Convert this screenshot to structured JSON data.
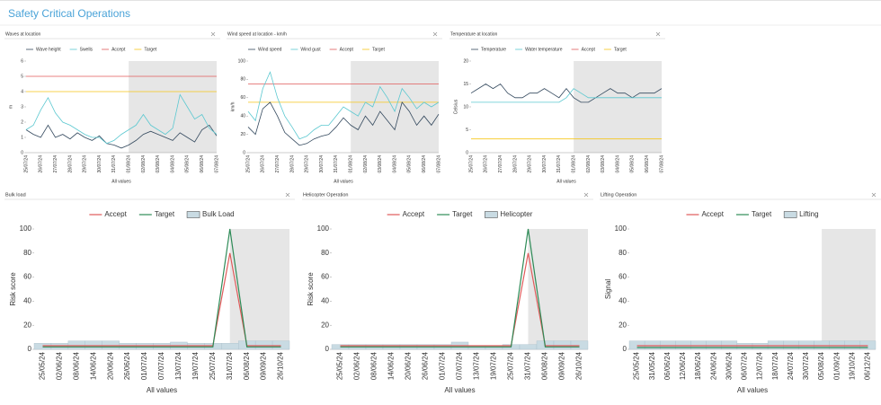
{
  "page_title": "Safety Critical Operations",
  "chart_data": [
    {
      "type": "line",
      "title": "Waves at location",
      "ylabel": "m",
      "xlabel": "All values",
      "categories": [
        "25/07/24",
        null,
        "26/07/24",
        null,
        "27/07/24",
        null,
        "28/07/24",
        null,
        "29/07/24",
        null,
        "30/07/24",
        null,
        "31/07/24",
        null,
        "01/08/24",
        null,
        "02/08/24",
        null,
        "03/08/24",
        null,
        "04/08/24",
        null,
        "05/08/24",
        null,
        "06/08/24",
        null,
        "07/08/24"
      ],
      "shade_from": "01/08/24",
      "ylim": [
        0,
        6
      ],
      "yticks": [
        0,
        1,
        2,
        3,
        4,
        5,
        6
      ],
      "series": [
        {
          "name": "Wave height",
          "color": "#34495e",
          "values": [
            1.5,
            1.2,
            1.0,
            1.8,
            1.0,
            1.2,
            0.9,
            1.3,
            1.0,
            0.8,
            1.1,
            0.6,
            0.5,
            0.3,
            0.5,
            0.8,
            1.2,
            1.4,
            1.2,
            1.0,
            0.8,
            1.3,
            1.0,
            0.7,
            1.5,
            1.8,
            1.1
          ]
        },
        {
          "name": "Swells",
          "color": "#5bc8d0",
          "values": [
            1.5,
            1.8,
            2.8,
            3.6,
            2.6,
            2.0,
            1.8,
            1.5,
            1.2,
            1.0,
            1.0,
            0.6,
            0.8,
            1.2,
            1.5,
            1.8,
            2.5,
            1.8,
            1.5,
            1.2,
            1.6,
            3.8,
            3.0,
            2.2,
            2.5,
            1.6,
            1.2
          ]
        }
      ],
      "thresholds": [
        {
          "name": "Accept",
          "color": "#e05a5a",
          "value": 5
        },
        {
          "name": "Target",
          "color": "#f5c518",
          "value": 4
        }
      ]
    },
    {
      "type": "line",
      "title": "Wind speed at location - km/h",
      "ylabel": "km/h",
      "xlabel": "All values",
      "categories": [
        "25/07/24",
        null,
        "26/07/24",
        null,
        "27/07/24",
        null,
        "28/07/24",
        null,
        "29/07/24",
        null,
        "30/07/24",
        null,
        "31/07/24",
        null,
        "01/08/24",
        null,
        "02/08/24",
        null,
        "03/08/24",
        null,
        "04/08/24",
        null,
        "05/08/24",
        null,
        "06/08/24",
        null,
        "07/08/24"
      ],
      "shade_from": "01/08/24",
      "ylim": [
        0,
        100
      ],
      "yticks": [
        0,
        20,
        40,
        60,
        80,
        100
      ],
      "series": [
        {
          "name": "Wind speed",
          "color": "#34495e",
          "values": [
            28,
            20,
            48,
            55,
            40,
            22,
            15,
            8,
            10,
            15,
            18,
            20,
            28,
            38,
            30,
            25,
            40,
            30,
            45,
            35,
            25,
            55,
            45,
            30,
            40,
            30,
            42
          ]
        },
        {
          "name": "Wind gust",
          "color": "#5bc8d0",
          "values": [
            45,
            35,
            70,
            88,
            60,
            40,
            28,
            15,
            18,
            25,
            30,
            30,
            40,
            50,
            45,
            40,
            55,
            50,
            72,
            60,
            45,
            70,
            60,
            48,
            55,
            50,
            55
          ]
        }
      ],
      "thresholds": [
        {
          "name": "Accept",
          "color": "#e05a5a",
          "value": 75
        },
        {
          "name": "Target",
          "color": "#f5c518",
          "value": 55
        }
      ]
    },
    {
      "type": "line",
      "title": "Temperature at location",
      "ylabel": "Celsius",
      "xlabel": "All values",
      "categories": [
        "25/07/24",
        null,
        "26/07/24",
        null,
        "27/07/24",
        null,
        "28/07/24",
        null,
        "29/07/24",
        null,
        "30/07/24",
        null,
        "31/07/24",
        null,
        "01/08/24",
        null,
        "02/08/24",
        null,
        "03/08/24",
        null,
        "04/08/24",
        null,
        "05/08/24",
        null,
        "06/08/24",
        null,
        "07/08/24"
      ],
      "shade_from": "01/08/24",
      "ylim": [
        0,
        20
      ],
      "yticks": [
        0,
        5,
        10,
        15,
        20
      ],
      "series": [
        {
          "name": "Temperature",
          "color": "#34495e",
          "values": [
            13,
            14,
            15,
            14,
            15,
            13,
            12,
            12,
            13,
            13,
            14,
            13,
            12,
            14,
            12,
            11,
            11,
            12,
            13,
            14,
            13,
            13,
            12,
            13,
            13,
            13,
            14
          ]
        },
        {
          "name": "Water temperature",
          "color": "#5bc8d0",
          "values": [
            11,
            11,
            11,
            11,
            11,
            11,
            11,
            11,
            11,
            11,
            11,
            11,
            11,
            12,
            14,
            13,
            12,
            12,
            12,
            12,
            12,
            12,
            12,
            12,
            12,
            12,
            12
          ]
        }
      ],
      "thresholds": [
        {
          "name": "Accept",
          "color": "#e05a5a",
          "value": null
        },
        {
          "name": "Target",
          "color": "#f5c518",
          "value": 3
        }
      ]
    },
    {
      "type": "bar",
      "title": "Bulk load",
      "ylabel": "Risk score",
      "xlabel": "All values",
      "categories": [
        "25/05/24",
        "02/06/24",
        "08/06/24",
        "14/06/24",
        "20/06/24",
        "26/06/24",
        "01/07/24",
        "07/07/24",
        "13/07/24",
        "19/07/24",
        "25/07/24",
        "31/07/24",
        "06/08/24",
        "09/09/24",
        "26/10/24"
      ],
      "shade_from": "31/07/24",
      "ylim": [
        0,
        100
      ],
      "yticks": [
        0,
        20,
        40,
        60,
        80,
        100
      ],
      "series": [
        {
          "name": "Accept",
          "kind": "line",
          "color": "#e05a5a",
          "values": [
            3,
            3,
            3,
            3,
            3,
            3,
            3,
            3,
            3,
            3,
            3,
            80,
            3,
            3,
            3
          ]
        },
        {
          "name": "Target",
          "kind": "line",
          "color": "#2e8b57",
          "values": [
            2,
            2,
            2,
            2,
            2,
            2,
            2,
            2,
            2,
            2,
            2,
            100,
            2,
            2,
            2
          ]
        },
        {
          "name": "Bulk Load",
          "kind": "bar",
          "color": "#c9dbe3",
          "values": [
            5,
            5,
            7,
            7,
            7,
            5,
            5,
            5,
            6,
            5,
            5,
            5,
            7,
            7,
            7
          ]
        }
      ]
    },
    {
      "type": "bar",
      "title": "Helicopter Operation",
      "ylabel": "Risk score",
      "xlabel": "All values",
      "categories": [
        "25/05/24",
        "02/06/24",
        "08/06/24",
        "14/06/24",
        "20/06/24",
        "26/06/24",
        "01/07/24",
        "07/07/24",
        "13/07/24",
        "19/07/24",
        "25/07/24",
        "31/07/24",
        "06/08/24",
        "09/09/24",
        "26/10/24"
      ],
      "shade_from": "31/07/24",
      "ylim": [
        0,
        100
      ],
      "yticks": [
        0,
        20,
        40,
        60,
        80,
        100
      ],
      "series": [
        {
          "name": "Accept",
          "kind": "line",
          "color": "#e05a5a",
          "values": [
            3,
            3,
            3,
            3,
            3,
            3,
            3,
            3,
            3,
            3,
            3,
            80,
            3,
            3,
            3
          ]
        },
        {
          "name": "Target",
          "kind": "line",
          "color": "#2e8b57",
          "values": [
            2,
            2,
            2,
            2,
            2,
            2,
            2,
            2,
            2,
            2,
            2,
            100,
            2,
            2,
            2
          ]
        },
        {
          "name": "Helicopter",
          "kind": "bar",
          "color": "#c9dbe3",
          "values": [
            4,
            4,
            4,
            4,
            4,
            4,
            4,
            6,
            3,
            3,
            4,
            4,
            7,
            7,
            7
          ]
        }
      ]
    },
    {
      "type": "bar",
      "title": "Lifting Operation",
      "ylabel": "Signal",
      "xlabel": "All values",
      "categories": [
        "25/05/24",
        "31/05/24",
        "06/06/24",
        "12/06/24",
        "18/06/24",
        "24/06/24",
        "30/06/24",
        "06/07/24",
        "12/07/24",
        "18/07/24",
        "24/07/24",
        "30/07/24",
        "05/08/24",
        "01/09/24",
        "19/10/24",
        "06/12/24"
      ],
      "shade_from": "05/08/24",
      "ylim": [
        0,
        100
      ],
      "yticks": [
        0,
        20,
        40,
        60,
        80,
        100
      ],
      "series": [
        {
          "name": "Accept",
          "kind": "line",
          "color": "#e05a5a",
          "values": [
            3,
            3,
            3,
            3,
            3,
            3,
            3,
            3,
            3,
            3,
            3,
            3,
            3,
            3,
            3,
            3
          ]
        },
        {
          "name": "Target",
          "kind": "line",
          "color": "#2e8b57",
          "values": [
            1.5,
            1.5,
            1.5,
            1.5,
            1.5,
            1.5,
            1.5,
            1.5,
            1.5,
            1.5,
            1.5,
            1.5,
            1.5,
            1.5,
            1.5,
            1.5
          ]
        },
        {
          "name": "Lifting",
          "kind": "bar",
          "color": "#c9dbe3",
          "values": [
            7,
            7,
            7,
            7,
            7,
            7,
            7,
            5,
            5,
            7,
            7,
            7,
            7,
            7,
            7,
            7
          ]
        }
      ]
    }
  ]
}
